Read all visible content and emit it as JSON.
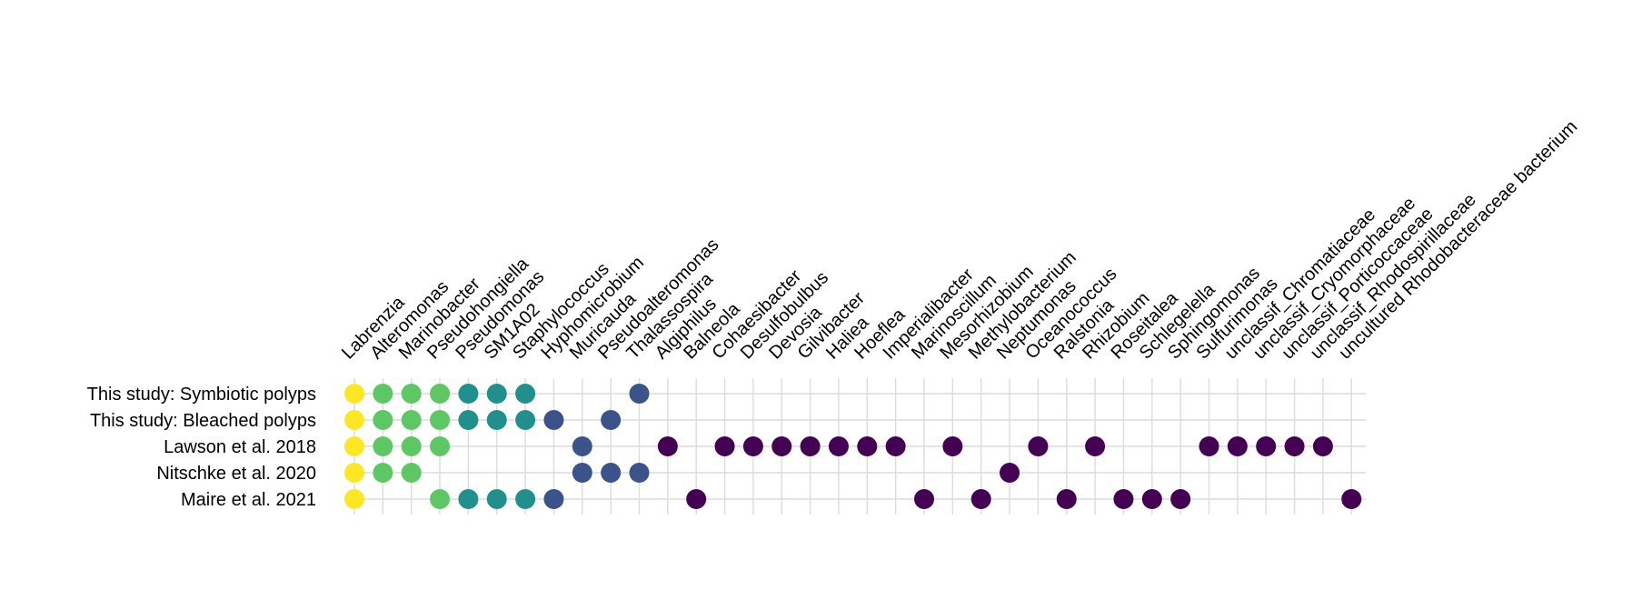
{
  "chart_data": {
    "type": "scatter",
    "title": "",
    "xlabel": "",
    "ylabel": "",
    "grid": true,
    "legend": "none",
    "x_categories": [
      "Labrenzia",
      "Alteromonas",
      "Marinobacter",
      "Pseudohongiella",
      "Pseudomonas",
      "SM1A02",
      "Staphylococcus",
      "Hyphomicrobium",
      "Muricauda",
      "Pseudoalteromonas",
      "Thalassospira",
      "Algiphilus",
      "Balneola",
      "Cohaesibacter",
      "Desulfobulbus",
      "Devosia",
      "Gilvibacter",
      "Haliea",
      "Hoeflea",
      "Imperialibacter",
      "Marinoscillum",
      "Mesorhizobium",
      "Methylobacterium",
      "Neptumonas",
      "Oceanococcus",
      "Ralstonia",
      "Rhizobium",
      "Roseitalea",
      "Schlegelella",
      "Sphingomonas",
      "Sulfurimonas",
      "unclassif_Chromatiaceae",
      "unclassif_Cryomorphaceae",
      "unclassif_Porticoccaceae",
      "unclassif_Rhodospirillaceae",
      "uncultured Rhodobacteraceae bacterium"
    ],
    "y_categories": [
      "This study: Symbiotic polyps",
      "This study: Bleached polyps",
      "Lawson et al. 2018",
      "Nitschke et al. 2020",
      "Maire et al. 2021"
    ],
    "palette": [
      "#440154",
      "#3b528b",
      "#21908c",
      "#5dc863",
      "#fde725"
    ],
    "points": [
      {
        "x": "Labrenzia",
        "y": "This study: Symbiotic polyps",
        "level": 5
      },
      {
        "x": "Alteromonas",
        "y": "This study: Symbiotic polyps",
        "level": 4
      },
      {
        "x": "Marinobacter",
        "y": "This study: Symbiotic polyps",
        "level": 4
      },
      {
        "x": "Pseudohongiella",
        "y": "This study: Symbiotic polyps",
        "level": 4
      },
      {
        "x": "Pseudomonas",
        "y": "This study: Symbiotic polyps",
        "level": 3
      },
      {
        "x": "SM1A02",
        "y": "This study: Symbiotic polyps",
        "level": 3
      },
      {
        "x": "Staphylococcus",
        "y": "This study: Symbiotic polyps",
        "level": 3
      },
      {
        "x": "Thalassospira",
        "y": "This study: Symbiotic polyps",
        "level": 2
      },
      {
        "x": "Labrenzia",
        "y": "This study: Bleached polyps",
        "level": 5
      },
      {
        "x": "Alteromonas",
        "y": "This study: Bleached polyps",
        "level": 4
      },
      {
        "x": "Marinobacter",
        "y": "This study: Bleached polyps",
        "level": 4
      },
      {
        "x": "Pseudohongiella",
        "y": "This study: Bleached polyps",
        "level": 4
      },
      {
        "x": "Pseudomonas",
        "y": "This study: Bleached polyps",
        "level": 3
      },
      {
        "x": "SM1A02",
        "y": "This study: Bleached polyps",
        "level": 3
      },
      {
        "x": "Staphylococcus",
        "y": "This study: Bleached polyps",
        "level": 3
      },
      {
        "x": "Hyphomicrobium",
        "y": "This study: Bleached polyps",
        "level": 2
      },
      {
        "x": "Pseudoalteromonas",
        "y": "This study: Bleached polyps",
        "level": 2
      },
      {
        "x": "Labrenzia",
        "y": "Lawson et al. 2018",
        "level": 5
      },
      {
        "x": "Alteromonas",
        "y": "Lawson et al. 2018",
        "level": 4
      },
      {
        "x": "Marinobacter",
        "y": "Lawson et al. 2018",
        "level": 4
      },
      {
        "x": "Pseudohongiella",
        "y": "Lawson et al. 2018",
        "level": 4
      },
      {
        "x": "Muricauda",
        "y": "Lawson et al. 2018",
        "level": 2
      },
      {
        "x": "Algiphilus",
        "y": "Lawson et al. 2018",
        "level": 1
      },
      {
        "x": "Cohaesibacter",
        "y": "Lawson et al. 2018",
        "level": 1
      },
      {
        "x": "Desulfobulbus",
        "y": "Lawson et al. 2018",
        "level": 1
      },
      {
        "x": "Devosia",
        "y": "Lawson et al. 2018",
        "level": 1
      },
      {
        "x": "Gilvibacter",
        "y": "Lawson et al. 2018",
        "level": 1
      },
      {
        "x": "Haliea",
        "y": "Lawson et al. 2018",
        "level": 1
      },
      {
        "x": "Hoeflea",
        "y": "Lawson et al. 2018",
        "level": 1
      },
      {
        "x": "Imperialibacter",
        "y": "Lawson et al. 2018",
        "level": 1
      },
      {
        "x": "Mesorhizobium",
        "y": "Lawson et al. 2018",
        "level": 1
      },
      {
        "x": "Oceanococcus",
        "y": "Lawson et al. 2018",
        "level": 1
      },
      {
        "x": "Rhizobium",
        "y": "Lawson et al. 2018",
        "level": 1
      },
      {
        "x": "Sulfurimonas",
        "y": "Lawson et al. 2018",
        "level": 1
      },
      {
        "x": "unclassif_Chromatiaceae",
        "y": "Lawson et al. 2018",
        "level": 1
      },
      {
        "x": "unclassif_Cryomorphaceae",
        "y": "Lawson et al. 2018",
        "level": 1
      },
      {
        "x": "unclassif_Porticoccaceae",
        "y": "Lawson et al. 2018",
        "level": 1
      },
      {
        "x": "unclassif_Rhodospirillaceae",
        "y": "Lawson et al. 2018",
        "level": 1
      },
      {
        "x": "Labrenzia",
        "y": "Nitschke et al. 2020",
        "level": 5
      },
      {
        "x": "Alteromonas",
        "y": "Nitschke et al. 2020",
        "level": 4
      },
      {
        "x": "Marinobacter",
        "y": "Nitschke et al. 2020",
        "level": 4
      },
      {
        "x": "Muricauda",
        "y": "Nitschke et al. 2020",
        "level": 2
      },
      {
        "x": "Pseudoalteromonas",
        "y": "Nitschke et al. 2020",
        "level": 2
      },
      {
        "x": "Thalassospira",
        "y": "Nitschke et al. 2020",
        "level": 2
      },
      {
        "x": "Neptumonas",
        "y": "Nitschke et al. 2020",
        "level": 1
      },
      {
        "x": "Labrenzia",
        "y": "Maire et al. 2021",
        "level": 5
      },
      {
        "x": "Pseudohongiella",
        "y": "Maire et al. 2021",
        "level": 4
      },
      {
        "x": "Pseudomonas",
        "y": "Maire et al. 2021",
        "level": 3
      },
      {
        "x": "SM1A02",
        "y": "Maire et al. 2021",
        "level": 3
      },
      {
        "x": "Staphylococcus",
        "y": "Maire et al. 2021",
        "level": 3
      },
      {
        "x": "Hyphomicrobium",
        "y": "Maire et al. 2021",
        "level": 2
      },
      {
        "x": "Balneola",
        "y": "Maire et al. 2021",
        "level": 1
      },
      {
        "x": "Marinoscillum",
        "y": "Maire et al. 2021",
        "level": 1
      },
      {
        "x": "Methylobacterium",
        "y": "Maire et al. 2021",
        "level": 1
      },
      {
        "x": "Ralstonia",
        "y": "Maire et al. 2021",
        "level": 1
      },
      {
        "x": "Roseitalea",
        "y": "Maire et al. 2021",
        "level": 1
      },
      {
        "x": "Schlegelella",
        "y": "Maire et al. 2021",
        "level": 1
      },
      {
        "x": "Sphingomonas",
        "y": "Maire et al. 2021",
        "level": 1
      },
      {
        "x": "uncultured Rhodobacteraceae bacterium",
        "y": "Maire et al. 2021",
        "level": 1
      }
    ]
  }
}
